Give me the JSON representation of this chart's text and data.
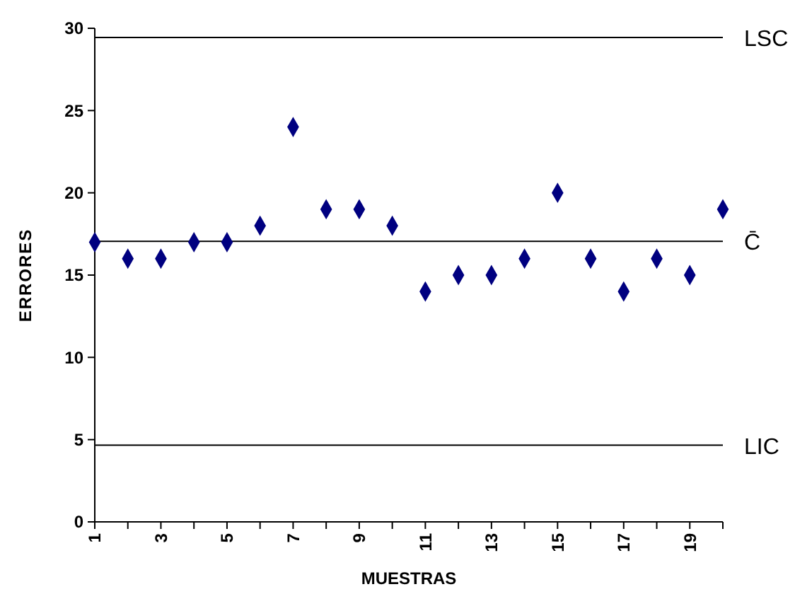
{
  "chart_data": {
    "type": "scatter",
    "xlabel": "MUESTRAS",
    "ylabel": "ERRORES",
    "x": [
      1,
      2,
      3,
      4,
      5,
      6,
      7,
      8,
      9,
      10,
      11,
      12,
      13,
      14,
      15,
      16,
      17,
      18,
      19,
      20
    ],
    "series": [
      {
        "color": "#000080",
        "values": [
          17,
          16,
          16,
          17,
          17,
          18,
          24,
          19,
          19,
          18,
          14,
          15,
          15,
          16,
          20,
          16,
          14,
          16,
          15,
          19
        ]
      }
    ],
    "xlim": [
      1,
      20
    ],
    "xticks": [
      1,
      {
        "value": 2,
        "label": null
      },
      3,
      {
        "value": 4,
        "label": null
      },
      5,
      {
        "value": 6,
        "label": null
      },
      7,
      {
        "value": 8,
        "label": null
      },
      9,
      {
        "value": 10,
        "label": null
      },
      11,
      {
        "value": 12,
        "label": null
      },
      13,
      {
        "value": 14,
        "label": null
      },
      15,
      {
        "value": 16,
        "label": null
      },
      17,
      {
        "value": 18,
        "label": null
      },
      19,
      {
        "value": 20,
        "label": null
      }
    ],
    "ylim": [
      0,
      30
    ],
    "yticks": [
      0,
      5,
      10,
      15,
      20,
      25,
      30
    ],
    "ref_lines": [
      {
        "axis": "y",
        "value": 29.44,
        "label": "LSC",
        "color": "#000000"
      },
      {
        "axis": "y",
        "value": 17.05,
        "label": "C̄",
        "color": "#000000"
      },
      {
        "axis": "y",
        "value": 4.66,
        "label": "LIC",
        "color": "#000000"
      }
    ],
    "marker": "diamond",
    "grid": false
  }
}
